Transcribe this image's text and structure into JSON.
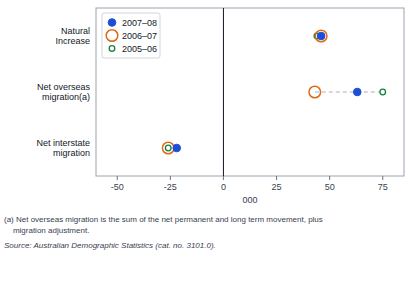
{
  "chart_data": {
    "type": "dot",
    "categories": [
      "Natural\nIncrease",
      "Net overseas\nmigration(a)",
      "Net interstate\nmigration"
    ],
    "series": [
      {
        "name": "2007–08",
        "color": "#1d4ed8",
        "marker": "filled-circle",
        "values": [
          46,
          63,
          -22
        ]
      },
      {
        "name": "2006–07",
        "color": "#dc6b19",
        "marker": "open-circle",
        "values": [
          46,
          43,
          -26
        ]
      },
      {
        "name": "2005–06",
        "color": "#15803d",
        "marker": "small-open-circle",
        "values": [
          44,
          75,
          -26
        ]
      }
    ],
    "orientation": "horizontal",
    "xlabel": "000",
    "xlim": [
      -60,
      85
    ],
    "xticks": [
      -50,
      -25,
      0,
      25,
      50,
      75
    ],
    "grid": false,
    "legend": "upper left",
    "annotations": [
      "(a) Net overseas migration is the sum of the net permanent and long term movement, plus",
      "    migration adjustment.",
      "Source: Australian Demographic Statistics (cat. no. 3101.0)."
    ]
  }
}
